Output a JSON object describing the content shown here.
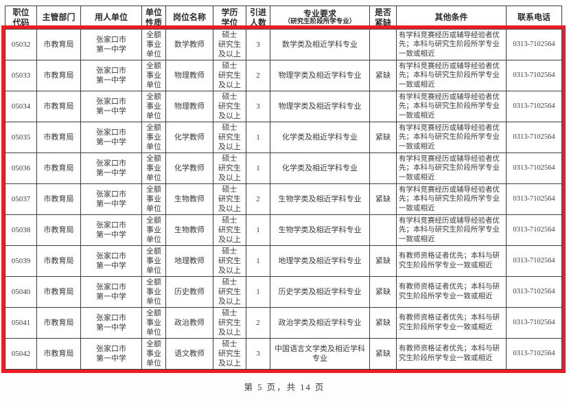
{
  "page": {
    "footer": "第 5 页，共 14 页"
  },
  "colors": {
    "highlight_red": "#ee1c25",
    "grid_border": "#3d3d3d",
    "text": "#3a3a3a"
  },
  "table": {
    "headers": [
      {
        "label": "职位\n代码"
      },
      {
        "label": "主管部门"
      },
      {
        "label": "用人单位"
      },
      {
        "label": "单位\n性质"
      },
      {
        "label": "岗位名称"
      },
      {
        "label": "学历\n学位"
      },
      {
        "label": "引进\n人数"
      },
      {
        "label": "专业要求",
        "sub": "（研究生阶段所学专业）"
      },
      {
        "label": "是否\n紧缺"
      },
      {
        "label": "其他条件"
      },
      {
        "label": "联系电话"
      }
    ],
    "rows": [
      {
        "code": "05032",
        "dept": "市教育局",
        "employer": "张家口市\n第一中学",
        "unit_type": "全额\n事业\n单位",
        "position": "数学教师",
        "degree": "硕士\n研究生\n及以上",
        "count": "3",
        "major": "数学类及相近学科专业",
        "scarce": "",
        "other": "有学科竞赛经历或辅导经验者优先；本科与研究生阶段所学专业一致或相近",
        "phone": "0313-7102564"
      },
      {
        "code": "05033",
        "dept": "市教育局",
        "employer": "张家口市\n第一中学",
        "unit_type": "全额\n事业\n单位",
        "position": "物理教师",
        "degree": "硕士\n研究生\n及以上",
        "count": "2",
        "major": "物理学类及相近学科专业",
        "scarce": "紧缺",
        "other": "有学科竞赛经历或辅导经验者优先；本科与研究生阶段所学专业一致或相近",
        "phone": "0313-7102564"
      },
      {
        "code": "05034",
        "dept": "市教育局",
        "employer": "张家口市\n第一中学",
        "unit_type": "全额\n事业\n单位",
        "position": "物理教师",
        "degree": "硕士\n研究生\n及以上",
        "count": "3",
        "major": "物理学类及相近学科专业",
        "scarce": "",
        "other": "有学科竞赛经历或辅导经验者优先；本科与研究生阶段所学专业一致或相近",
        "phone": "0313-7102564"
      },
      {
        "code": "05035",
        "dept": "市教育局",
        "employer": "张家口市\n第一中学",
        "unit_type": "全额\n事业\n单位",
        "position": "化学教师",
        "degree": "硕士\n研究生\n及以上",
        "count": "1",
        "major": "化学类及相近学科专业",
        "scarce": "紧缺",
        "other": "有学科竞赛经历或辅导经验者优先；本科与研究生阶段所学专业一致或相近",
        "phone": "0313-7102564"
      },
      {
        "code": "05036",
        "dept": "市教育局",
        "employer": "张家口市\n第一中学",
        "unit_type": "全额\n事业\n单位",
        "position": "化学教师",
        "degree": "硕士\n研究生\n及以上",
        "count": "1",
        "major": "化学类及相近学科专业",
        "scarce": "",
        "other": "有学科竞赛经历或辅导经验者优先；本科与研究生阶段所学专业一致或相近",
        "phone": "0313-7102564"
      },
      {
        "code": "05037",
        "dept": "市教育局",
        "employer": "张家口市\n第一中学",
        "unit_type": "全额\n事业\n单位",
        "position": "生物教师",
        "degree": "硕士\n研究生\n及以上",
        "count": "2",
        "major": "生物学类及相近学科专业",
        "scarce": "紧缺",
        "other": "有学科竞赛经历或辅导经验者优先；本科与研究生阶段所学专业一致或相近",
        "phone": "0313-7102564"
      },
      {
        "code": "05038",
        "dept": "市教育局",
        "employer": "张家口市\n第一中学",
        "unit_type": "全额\n事业\n单位",
        "position": "生物教师",
        "degree": "硕士\n研究生\n及以上",
        "count": "1",
        "major": "生物学类及相近学科专业",
        "scarce": "",
        "other": "有学科竞赛经历或辅导经验者优先；本科与研究生阶段所学专业一致或相近",
        "phone": "0313-7102564"
      },
      {
        "code": "05039",
        "dept": "市教育局",
        "employer": "张家口市\n第一中学",
        "unit_type": "全额\n事业\n单位",
        "position": "地理教师",
        "degree": "硕士\n研究生\n及以上",
        "count": "1",
        "major": "地理学类及相近学科专业",
        "scarce": "紧缺",
        "other": "有教师资格证者优先；本科与研究生阶段所学专业一致或相近",
        "phone": "0313-7102564"
      },
      {
        "code": "05040",
        "dept": "市教育局",
        "employer": "张家口市\n第一中学",
        "unit_type": "全额\n事业\n单位",
        "position": "历史教师",
        "degree": "硕士\n研究生\n及以上",
        "count": "1",
        "major": "历史学类及相近学科专业",
        "scarce": "紧缺",
        "other": "有教师资格证者优先；本科与研究生阶段所学专业一致或相近",
        "phone": "0313-7102564"
      },
      {
        "code": "05041",
        "dept": "市教育局",
        "employer": "张家口市\n第一中学",
        "unit_type": "全额\n事业\n单位",
        "position": "政治教师",
        "degree": "硕士\n研究生\n及以上",
        "count": "2",
        "major": "政治学类及相近学科专业",
        "scarce": "紧缺",
        "other": "有教师资格证者优先；本科与研究生阶段所学专业一致或相近",
        "phone": "0313-7102564"
      },
      {
        "code": "05042",
        "dept": "市教育局",
        "employer": "张家口市\n第一中学",
        "unit_type": "全额\n事业\n单位",
        "position": "语文教师",
        "degree": "硕士\n研究生\n及以上",
        "count": "3",
        "major": "中国语言文学类及相近学科专业",
        "scarce": "紧缺",
        "other": "有教师资格证者优先；本科与研究生阶段所学专业一致或相近",
        "phone": "0313-7102564"
      }
    ]
  }
}
